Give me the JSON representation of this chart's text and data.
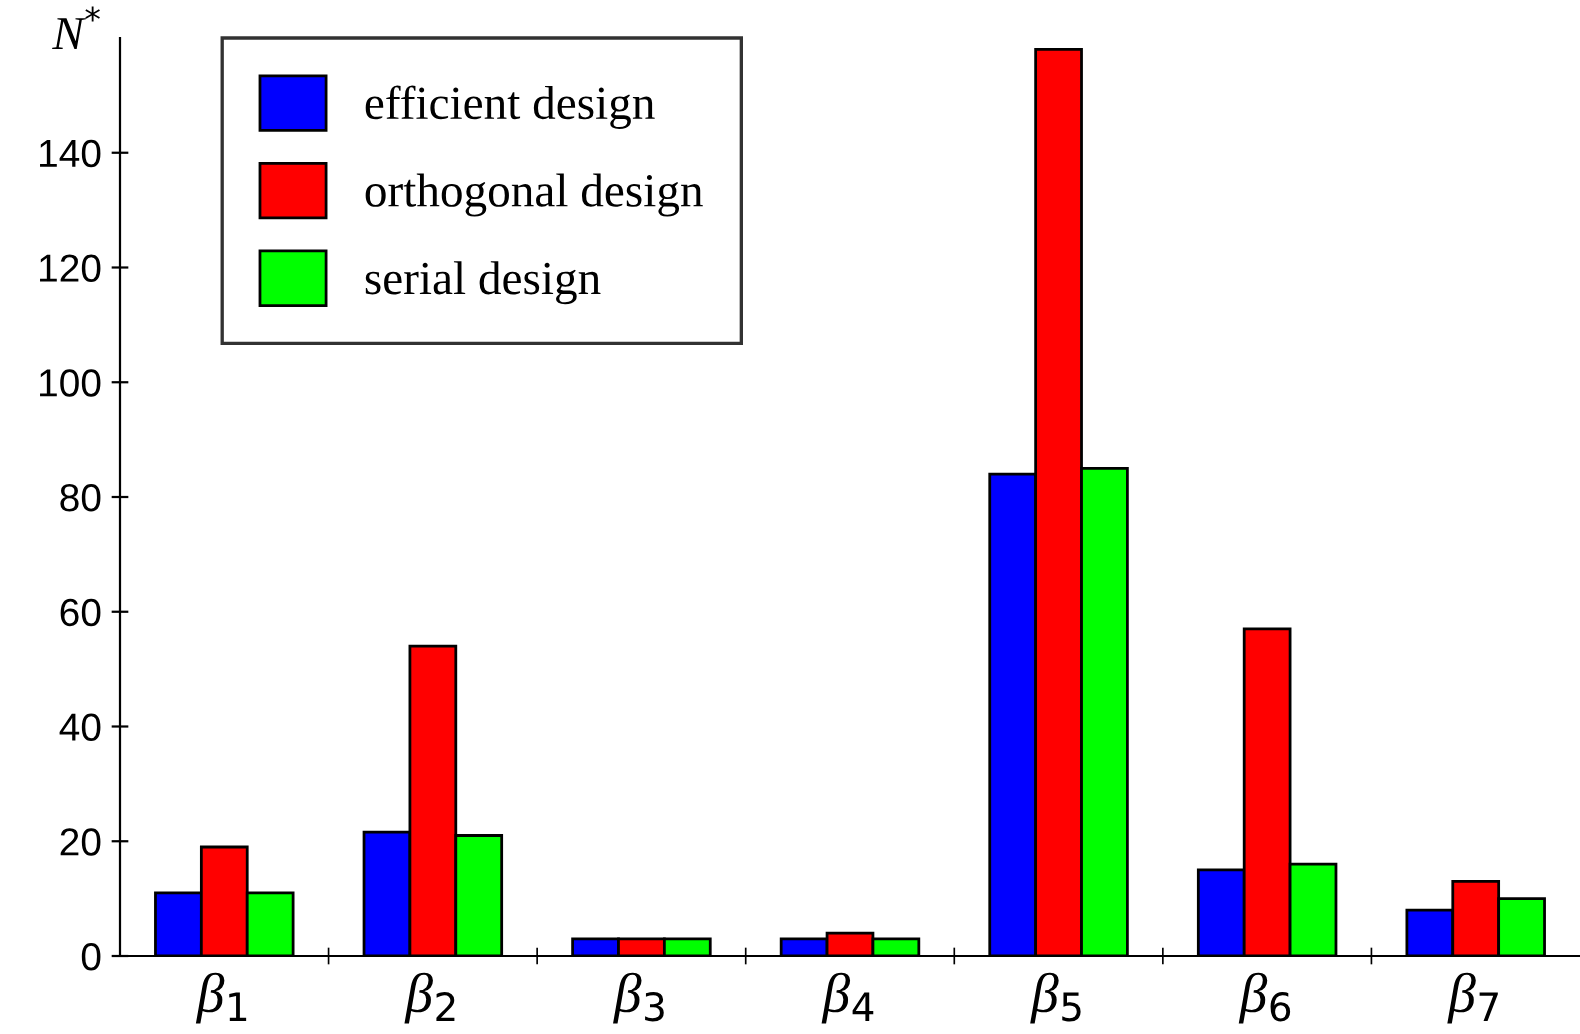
{
  "chart_data": {
    "type": "bar",
    "ylabel": "N$^{*}$",
    "categories": [
      "β$_{1}$",
      "β$_{2}$",
      "β$_{3}$",
      "β$_{4}$",
      "β$_{5}$",
      "β$_{6}$",
      "β$_{7}$"
    ],
    "series": [
      {
        "name": "efficient design",
        "color": "#0000ff",
        "values": [
          11,
          21.6,
          3,
          3,
          84,
          15,
          8
        ]
      },
      {
        "name": "orthogonal design",
        "color": "#ff0000",
        "values": [
          19,
          54,
          3,
          4,
          158,
          57,
          13
        ]
      },
      {
        "name": "serial design",
        "color": "#00ff00",
        "values": [
          11,
          21,
          3,
          3,
          85,
          16,
          10
        ]
      }
    ],
    "ylim": [
      0,
      160
    ],
    "yticks": [
      0,
      20,
      40,
      60,
      80,
      100,
      120,
      140
    ],
    "grid": false,
    "legend": "top left"
  }
}
